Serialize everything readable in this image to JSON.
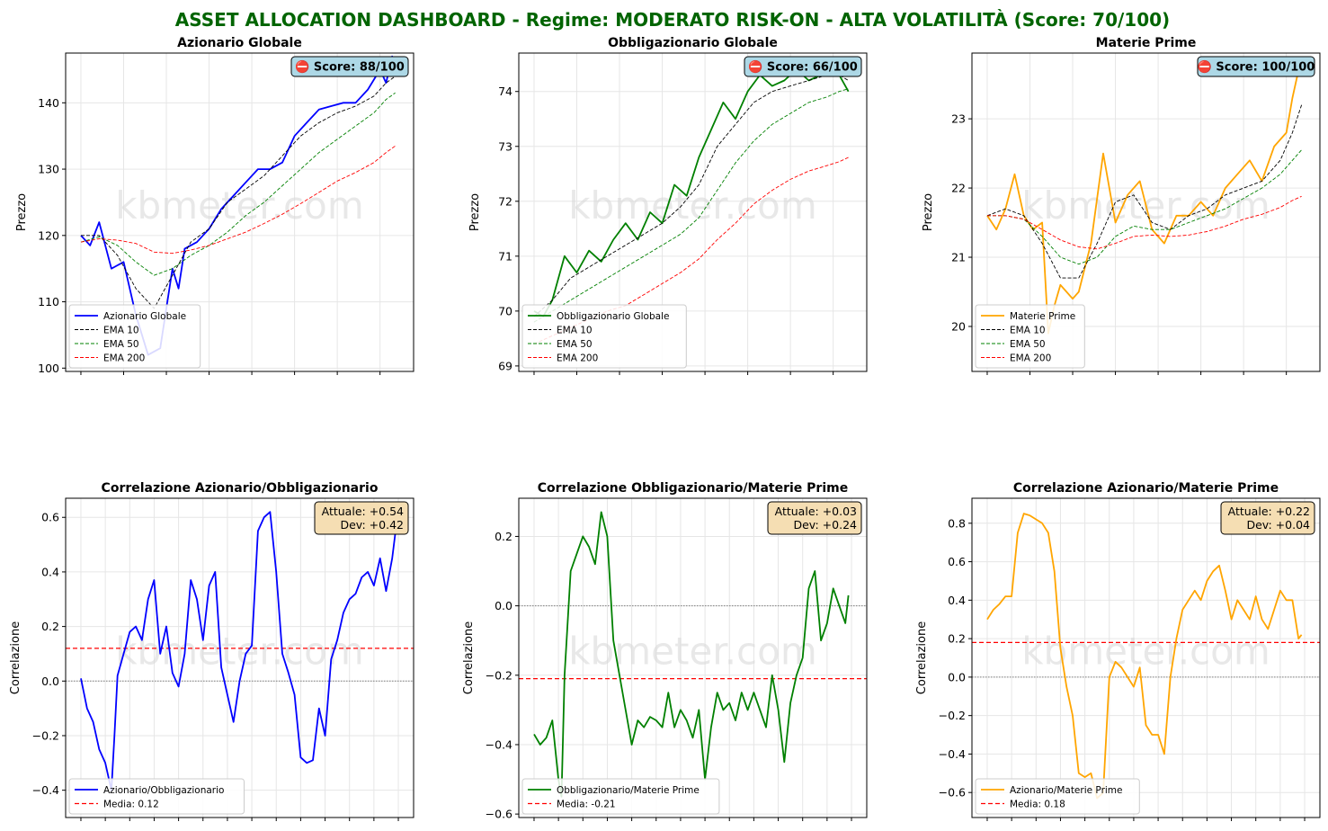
{
  "title": "ASSET ALLOCATION DASHBOARD - Regime: MODERATO RISK-ON - ALTA VOLATILITÀ (Score: 70/100)",
  "colors": {
    "title": "#006400",
    "ema10": "#000000",
    "ema50": "#008000",
    "ema200": "#ff0000",
    "media": "#ff0000",
    "score_box": "#add8e6",
    "corr_box": "#f5deb3",
    "watermark": "#d9d9d9",
    "grid": "#e6e6e6"
  },
  "watermark": "kbmeter.com",
  "chart_data": [
    {
      "type": "line",
      "title": "Azionario Globale",
      "ylabel": "Prezzo",
      "ylim": [
        99.5,
        147.5
      ],
      "yticks": [
        100,
        110,
        120,
        130,
        140
      ],
      "score_text": "⛔ Score: 88/100",
      "color": "#0000ff",
      "series": [
        {
          "name": "Azionario Globale",
          "x": [
            0,
            3,
            6,
            10,
            14,
            18,
            22,
            26,
            30,
            32,
            34,
            38,
            42,
            46,
            50,
            54,
            58,
            62,
            66,
            70,
            74,
            78,
            82,
            86,
            90,
            94,
            98,
            100,
            102,
            103
          ],
          "values": [
            120,
            118.5,
            122,
            115,
            116,
            108,
            102,
            103,
            115,
            112,
            118,
            119,
            121,
            124,
            126,
            128,
            130,
            130,
            131,
            135,
            137,
            139,
            139.5,
            140,
            140,
            142,
            145,
            143,
            147,
            144
          ]
        },
        {
          "name": "EMA 10",
          "x": [
            0,
            6,
            12,
            18,
            24,
            30,
            36,
            42,
            48,
            54,
            60,
            66,
            72,
            78,
            84,
            90,
            96,
            100,
            103
          ],
          "values": [
            120,
            120,
            117,
            112,
            109,
            114,
            119,
            121,
            125,
            127,
            129,
            132,
            135,
            137,
            138.5,
            139.5,
            141,
            143,
            144
          ]
        },
        {
          "name": "EMA 50",
          "x": [
            0,
            6,
            12,
            18,
            24,
            30,
            36,
            42,
            48,
            54,
            60,
            66,
            72,
            78,
            84,
            90,
            96,
            100,
            103
          ],
          "values": [
            119,
            119.8,
            118.5,
            116,
            114,
            115,
            117,
            118.5,
            120.5,
            123,
            125,
            127.5,
            130,
            132.5,
            134.5,
            136.5,
            138.5,
            140.5,
            141.5
          ]
        },
        {
          "name": "EMA 200",
          "x": [
            0,
            6,
            12,
            18,
            24,
            30,
            36,
            42,
            48,
            54,
            60,
            66,
            72,
            78,
            84,
            90,
            96,
            100,
            103
          ],
          "values": [
            119,
            119.5,
            119.3,
            118.8,
            117.5,
            117.3,
            117.8,
            118.5,
            119.5,
            120.5,
            121.8,
            123.2,
            124.8,
            126.5,
            128.2,
            129.5,
            131,
            132.5,
            133.5
          ]
        }
      ]
    },
    {
      "type": "line",
      "title": "Obbligazionario Globale",
      "ylabel": "Prezzo",
      "ylim": [
        68.9,
        74.7
      ],
      "yticks": [
        69,
        70,
        71,
        72,
        73,
        74
      ],
      "score_text": "⛔ Score: 66/100",
      "color": "#008000",
      "series": [
        {
          "name": "Obbligazionario Globale",
          "x": [
            0,
            3,
            6,
            10,
            14,
            18,
            22,
            26,
            30,
            34,
            38,
            42,
            46,
            50,
            54,
            58,
            62,
            66,
            70,
            74,
            78,
            82,
            86,
            90,
            94,
            98,
            100,
            103
          ],
          "values": [
            70,
            69.9,
            70.2,
            71,
            70.7,
            71.1,
            70.9,
            71.3,
            71.6,
            71.3,
            71.8,
            71.6,
            72.3,
            72.1,
            72.8,
            73.3,
            73.8,
            73.5,
            74,
            74.3,
            74.1,
            74.2,
            74.4,
            74.2,
            74.3,
            74.4,
            74.3,
            74
          ]
        },
        {
          "name": "EMA 10",
          "x": [
            0,
            6,
            12,
            18,
            24,
            30,
            36,
            42,
            48,
            54,
            60,
            66,
            72,
            78,
            84,
            90,
            96,
            100,
            103
          ],
          "values": [
            69.9,
            70.2,
            70.6,
            70.8,
            71,
            71.2,
            71.4,
            71.6,
            71.9,
            72.3,
            73,
            73.4,
            73.8,
            74,
            74.1,
            74.2,
            74.3,
            74.3,
            74.2
          ]
        },
        {
          "name": "EMA 50",
          "x": [
            0,
            6,
            12,
            18,
            24,
            30,
            36,
            42,
            48,
            54,
            60,
            66,
            72,
            78,
            84,
            90,
            96,
            100,
            103
          ],
          "values": [
            69.8,
            70,
            70.2,
            70.4,
            70.6,
            70.8,
            71,
            71.2,
            71.4,
            71.7,
            72.2,
            72.7,
            73.1,
            73.4,
            73.6,
            73.8,
            73.9,
            74,
            74.05
          ]
        },
        {
          "name": "EMA 200",
          "x": [
            0,
            6,
            12,
            18,
            24,
            30,
            36,
            42,
            48,
            54,
            60,
            66,
            72,
            78,
            84,
            90,
            96,
            100,
            103
          ],
          "values": [
            69.4,
            69.55,
            69.7,
            69.85,
            70,
            70.1,
            70.3,
            70.5,
            70.7,
            70.95,
            71.3,
            71.6,
            71.95,
            72.2,
            72.4,
            72.55,
            72.65,
            72.72,
            72.8
          ]
        }
      ]
    },
    {
      "type": "line",
      "title": "Materie Prime",
      "ylabel": "Prezzo",
      "ylim": [
        19.35,
        23.95
      ],
      "yticks": [
        20,
        21,
        22,
        23
      ],
      "score_text": "⛔ Score: 100/100",
      "color": "#ffa500",
      "series": [
        {
          "name": "Materie Prime",
          "x": [
            0,
            3,
            6,
            9,
            12,
            15,
            18,
            20,
            22,
            24,
            26,
            28,
            30,
            34,
            38,
            42,
            46,
            50,
            54,
            58,
            62,
            66,
            70,
            74,
            78,
            82,
            86,
            90,
            94,
            98,
            100,
            103
          ],
          "values": [
            21.6,
            21.4,
            21.7,
            22.2,
            21.6,
            21.4,
            21.5,
            19.9,
            20.3,
            20.6,
            20.5,
            20.4,
            20.5,
            21.2,
            22.5,
            21.5,
            21.9,
            22.1,
            21.4,
            21.2,
            21.6,
            21.6,
            21.8,
            21.6,
            22,
            22.2,
            22.4,
            22.1,
            22.6,
            22.8,
            23.3,
            23.9
          ]
        },
        {
          "name": "EMA 10",
          "x": [
            0,
            6,
            12,
            18,
            24,
            30,
            36,
            42,
            48,
            54,
            60,
            66,
            72,
            78,
            84,
            90,
            96,
            100,
            103
          ],
          "values": [
            21.6,
            21.7,
            21.6,
            21.2,
            20.7,
            20.7,
            21.2,
            21.8,
            21.9,
            21.5,
            21.4,
            21.6,
            21.7,
            21.9,
            22,
            22.1,
            22.4,
            22.8,
            23.2
          ]
        },
        {
          "name": "EMA 50",
          "x": [
            0,
            6,
            12,
            18,
            24,
            30,
            36,
            42,
            48,
            54,
            60,
            66,
            72,
            78,
            84,
            90,
            96,
            100,
            103
          ],
          "values": [
            21.6,
            21.6,
            21.55,
            21.3,
            21,
            20.9,
            21,
            21.3,
            21.45,
            21.4,
            21.4,
            21.5,
            21.6,
            21.7,
            21.85,
            22,
            22.2,
            22.4,
            22.55
          ]
        },
        {
          "name": "EMA 200",
          "x": [
            0,
            6,
            12,
            18,
            24,
            30,
            36,
            42,
            48,
            54,
            60,
            66,
            72,
            78,
            84,
            90,
            96,
            100,
            103
          ],
          "values": [
            21.6,
            21.6,
            21.55,
            21.4,
            21.25,
            21.15,
            21.12,
            21.2,
            21.3,
            21.32,
            21.3,
            21.32,
            21.37,
            21.45,
            21.55,
            21.62,
            21.72,
            21.82,
            21.88
          ]
        }
      ]
    },
    {
      "type": "line",
      "title": "Correlazione Azionario/Obbligazionario",
      "ylabel": "Correlazione",
      "ylim": [
        -0.5,
        0.67
      ],
      "yticks": [
        -0.4,
        -0.2,
        0.0,
        0.2,
        0.4,
        0.6
      ],
      "info_lines": [
        "Attuale: +0.54",
        "Dev: +0.42"
      ],
      "color": "#0000ff",
      "mean": 0.12,
      "series": [
        {
          "name": "Azionario/Obbligazionario",
          "x": [
            0,
            2,
            4,
            6,
            8,
            10,
            11,
            12,
            14,
            16,
            18,
            20,
            22,
            24,
            26,
            28,
            30,
            32,
            34,
            36,
            38,
            40,
            42,
            44,
            46,
            48,
            50,
            52,
            54,
            56,
            58,
            60,
            62,
            64,
            66,
            68,
            70,
            72,
            74,
            76,
            78,
            80,
            82,
            84,
            86,
            88,
            90,
            92,
            94,
            96,
            98,
            100,
            102,
            103
          ],
          "values": [
            0.01,
            -0.1,
            -0.15,
            -0.25,
            -0.3,
            -0.4,
            -0.2,
            0.02,
            0.1,
            0.18,
            0.2,
            0.15,
            0.3,
            0.37,
            0.1,
            0.2,
            0.03,
            -0.02,
            0.1,
            0.37,
            0.3,
            0.15,
            0.35,
            0.4,
            0.05,
            -0.05,
            -0.15,
            0.0,
            0.1,
            0.13,
            0.55,
            0.6,
            0.62,
            0.4,
            0.1,
            0.03,
            -0.05,
            -0.28,
            -0.3,
            -0.29,
            -0.1,
            -0.2,
            0.08,
            0.15,
            0.25,
            0.3,
            0.32,
            0.38,
            0.4,
            0.35,
            0.45,
            0.33,
            0.45,
            0.54
          ]
        }
      ]
    },
    {
      "type": "line",
      "title": "Correlazione Obbligazionario/Materie Prime",
      "ylabel": "Correlazione",
      "ylim": [
        -0.61,
        0.31
      ],
      "yticks": [
        -0.6,
        -0.4,
        -0.2,
        0.0,
        0.2
      ],
      "info_lines": [
        "Attuale: +0.03",
        "Dev: +0.24"
      ],
      "color": "#008000",
      "mean": -0.21,
      "series": [
        {
          "name": "Obbligazionario/Materie Prime",
          "x": [
            0,
            2,
            4,
            6,
            8,
            9,
            10,
            12,
            14,
            16,
            18,
            20,
            22,
            24,
            26,
            28,
            30,
            32,
            34,
            36,
            38,
            40,
            42,
            44,
            46,
            48,
            50,
            52,
            54,
            56,
            58,
            60,
            62,
            64,
            66,
            68,
            70,
            72,
            74,
            76,
            78,
            80,
            82,
            84,
            86,
            88,
            90,
            92,
            94,
            96,
            98,
            100,
            102,
            103
          ],
          "values": [
            -0.37,
            -0.4,
            -0.38,
            -0.33,
            -0.5,
            -0.55,
            -0.2,
            0.1,
            0.15,
            0.2,
            0.17,
            0.12,
            0.27,
            0.2,
            -0.1,
            -0.2,
            -0.3,
            -0.4,
            -0.33,
            -0.35,
            -0.32,
            -0.33,
            -0.35,
            -0.25,
            -0.35,
            -0.3,
            -0.33,
            -0.38,
            -0.3,
            -0.5,
            -0.35,
            -0.25,
            -0.3,
            -0.28,
            -0.33,
            -0.25,
            -0.3,
            -0.25,
            -0.3,
            -0.35,
            -0.2,
            -0.3,
            -0.45,
            -0.28,
            -0.2,
            -0.15,
            0.05,
            0.1,
            -0.1,
            -0.05,
            0.05,
            0.0,
            -0.05,
            0.03
          ]
        }
      ]
    },
    {
      "type": "line",
      "title": "Correlazione Azionario/Materie Prime",
      "ylabel": "Correlazione",
      "ylim": [
        -0.73,
        0.93
      ],
      "yticks": [
        -0.6,
        -0.4,
        -0.2,
        0.0,
        0.2,
        0.4,
        0.6,
        0.8
      ],
      "info_lines": [
        "Attuale: +0.22",
        "Dev: +0.04"
      ],
      "color": "#ffa500",
      "mean": 0.18,
      "series": [
        {
          "name": "Azionario/Materie Prime",
          "x": [
            0,
            2,
            4,
            6,
            8,
            10,
            12,
            14,
            16,
            18,
            20,
            22,
            24,
            26,
            28,
            30,
            32,
            34,
            36,
            38,
            40,
            42,
            44,
            46,
            48,
            50,
            52,
            54,
            56,
            58,
            60,
            62,
            64,
            66,
            68,
            70,
            72,
            74,
            76,
            78,
            80,
            82,
            84,
            86,
            88,
            90,
            92,
            94,
            96,
            98,
            100,
            102,
            103
          ],
          "values": [
            0.3,
            0.35,
            0.38,
            0.42,
            0.42,
            0.75,
            0.85,
            0.84,
            0.82,
            0.8,
            0.75,
            0.55,
            0.15,
            -0.05,
            -0.2,
            -0.5,
            -0.52,
            -0.5,
            -0.63,
            -0.6,
            0.0,
            0.08,
            0.05,
            0.0,
            -0.05,
            0.05,
            -0.25,
            -0.3,
            -0.3,
            -0.4,
            0.0,
            0.2,
            0.35,
            0.4,
            0.45,
            0.4,
            0.5,
            0.55,
            0.58,
            0.45,
            0.3,
            0.4,
            0.35,
            0.3,
            0.42,
            0.3,
            0.25,
            0.35,
            0.45,
            0.4,
            0.4,
            0.2,
            0.22
          ]
        }
      ]
    }
  ]
}
